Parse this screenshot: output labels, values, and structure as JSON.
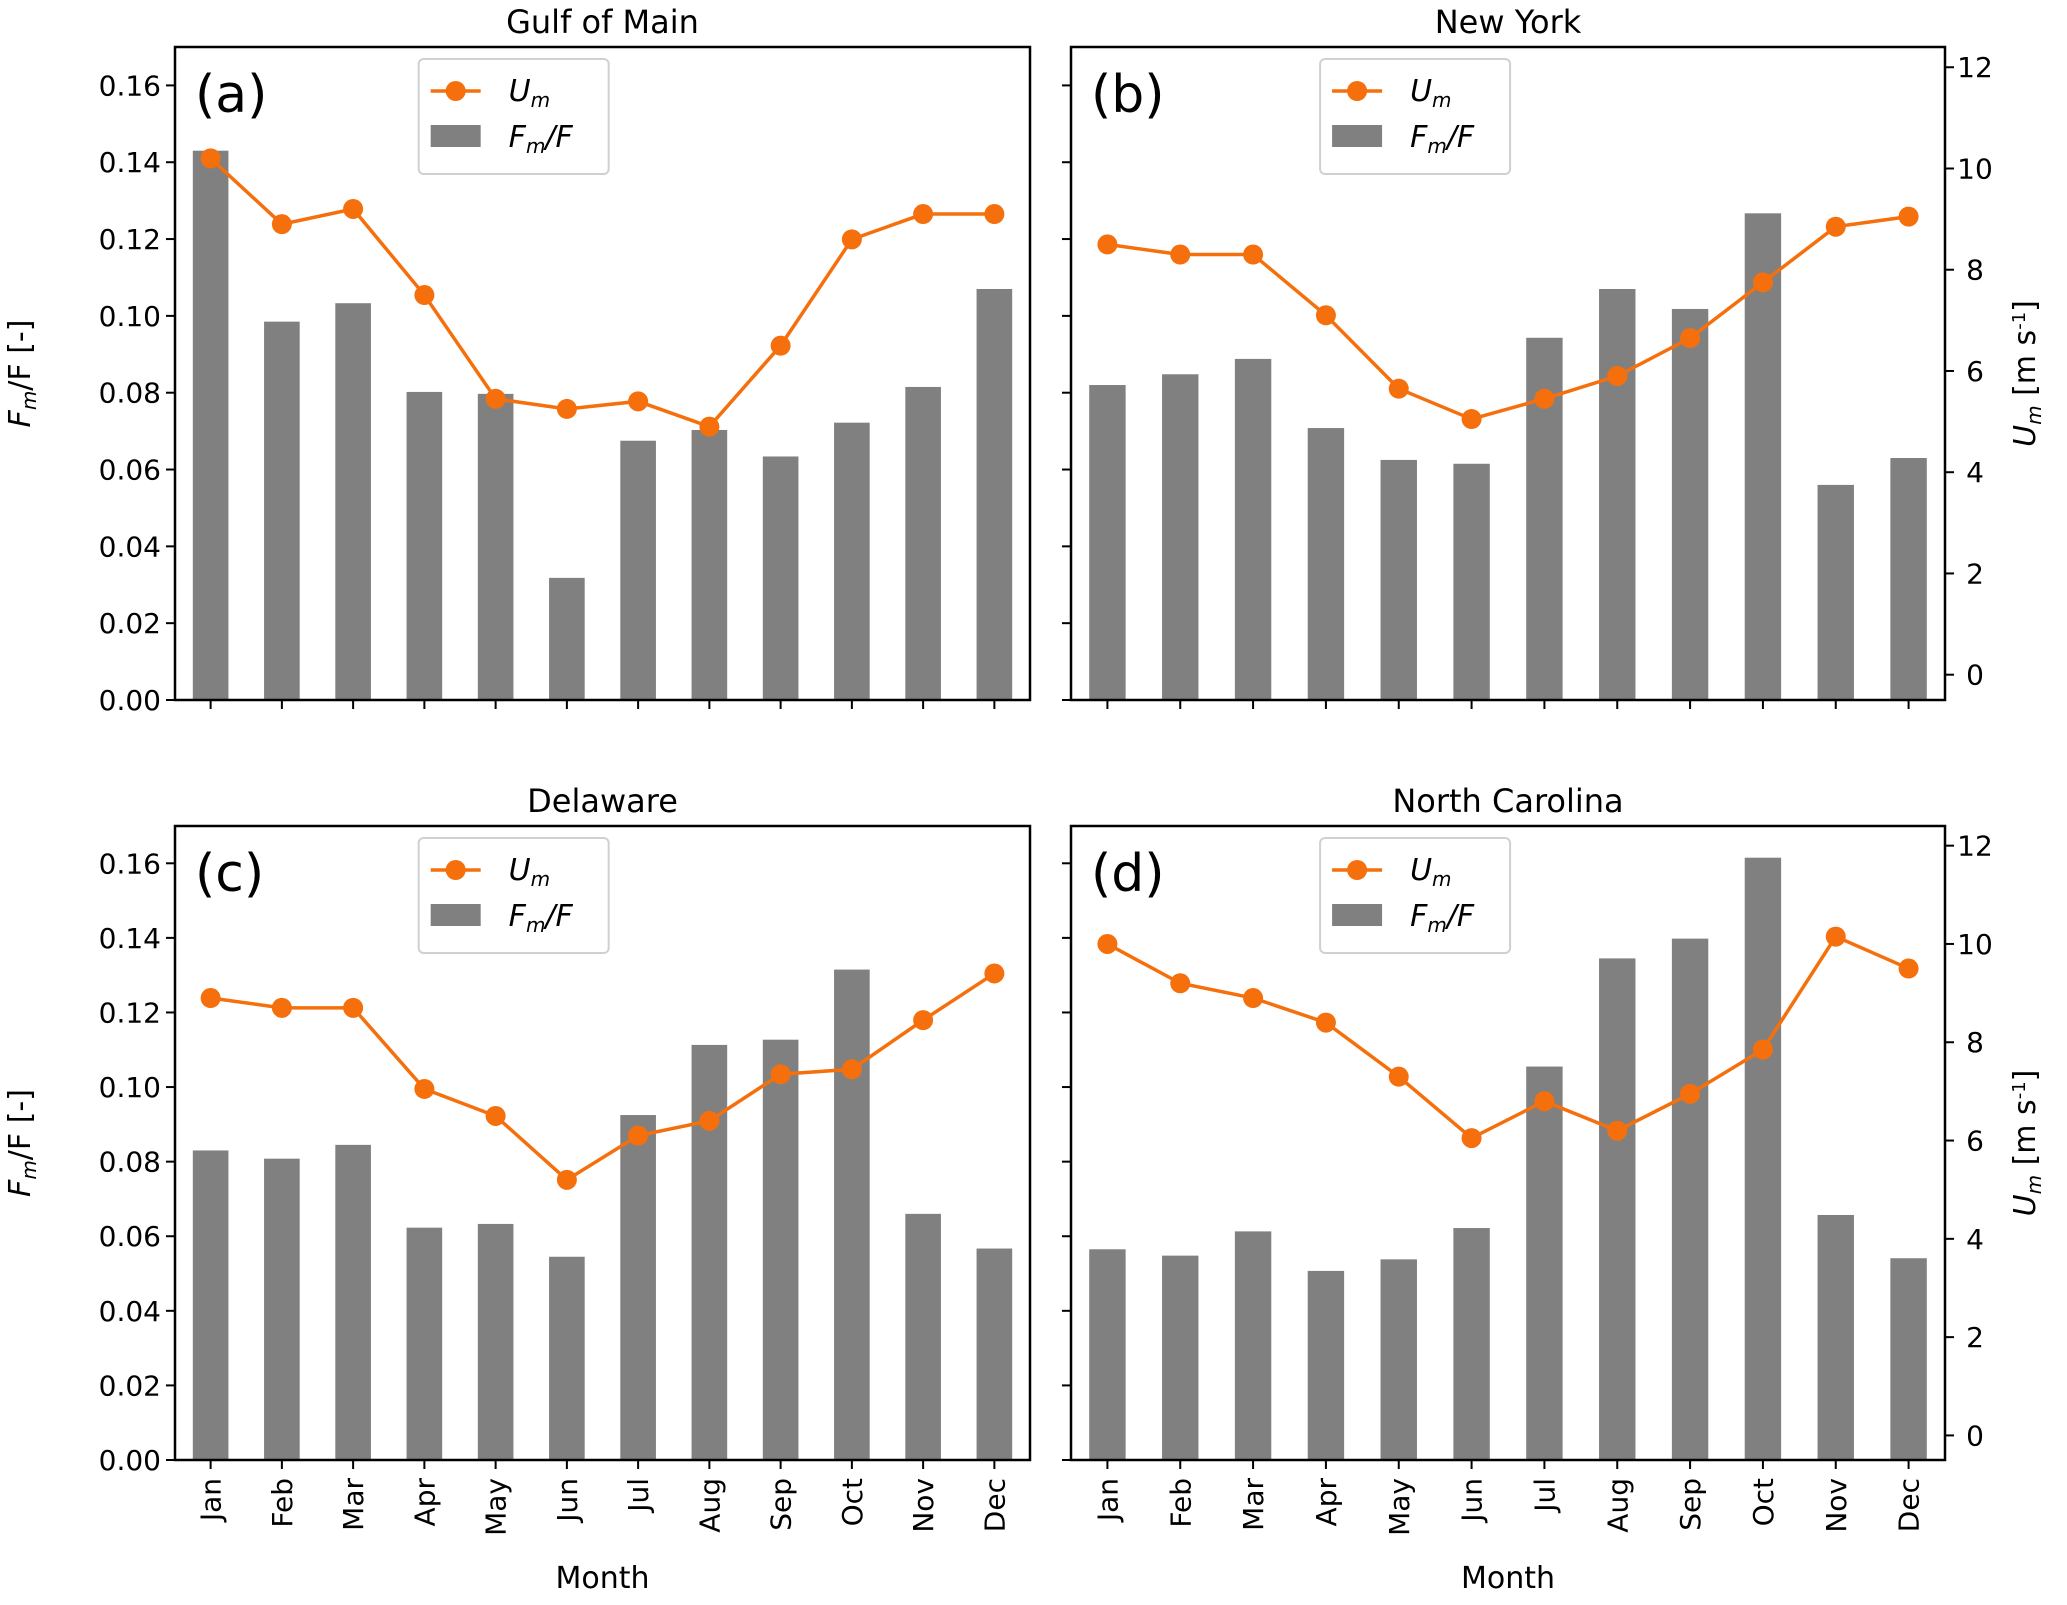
{
  "chart_data": [
    {
      "type": "bar",
      "panel": "(a)",
      "title": "Gulf of Main",
      "categories": [
        "Jan",
        "Feb",
        "Mar",
        "Apr",
        "May",
        "Jun",
        "Jul",
        "Aug",
        "Sep",
        "Oct",
        "Nov",
        "Dec"
      ],
      "series": [
        {
          "name": "F_m/F",
          "kind": "bar",
          "axis": "left",
          "color": "#808080",
          "values": [
            0.143,
            0.0985,
            0.1033,
            0.0802,
            0.0797,
            0.0318,
            0.0675,
            0.0703,
            0.0634,
            0.0722,
            0.0815,
            0.107
          ]
        },
        {
          "name": "U_m",
          "kind": "line",
          "axis": "right",
          "color": "#f5700c",
          "values": [
            10.2,
            8.9,
            9.2,
            7.5,
            5.45,
            5.25,
            5.4,
            4.9,
            6.5,
            8.6,
            9.1,
            9.1
          ]
        }
      ],
      "xlabel": "",
      "ylabel": "F_m/F [-]",
      "y2label": "",
      "ylim": [
        0,
        0.17
      ],
      "y2lim": [
        -0.5,
        12.4
      ],
      "yticks": [
        "0.00",
        "0.02",
        "0.04",
        "0.06",
        "0.08",
        "0.10",
        "0.12",
        "0.14",
        "0.16"
      ],
      "y2ticks": [],
      "show_xticklabels": false,
      "legend": "top-center",
      "grid": false
    },
    {
      "type": "bar",
      "panel": "(b)",
      "title": "New York",
      "categories": [
        "Jan",
        "Feb",
        "Mar",
        "Apr",
        "May",
        "Jun",
        "Jul",
        "Aug",
        "Sep",
        "Oct",
        "Nov",
        "Dec"
      ],
      "series": [
        {
          "name": "F_m/F",
          "kind": "bar",
          "axis": "left",
          "color": "#808080",
          "values": [
            0.082,
            0.0848,
            0.0888,
            0.0708,
            0.0625,
            0.0615,
            0.0943,
            0.107,
            0.1018,
            0.1267,
            0.056,
            0.063
          ]
        },
        {
          "name": "U_m",
          "kind": "line",
          "axis": "right",
          "color": "#f5700c",
          "values": [
            8.5,
            8.3,
            8.3,
            7.1,
            5.65,
            5.05,
            5.45,
            5.9,
            6.65,
            7.75,
            8.85,
            9.05
          ]
        }
      ],
      "xlabel": "",
      "ylabel": "",
      "y2label": "U_m [m s^-1]",
      "ylim": [
        0,
        0.17
      ],
      "y2lim": [
        -0.5,
        12.4
      ],
      "yticks": [],
      "y2ticks": [
        "0",
        "2",
        "4",
        "6",
        "8",
        "10",
        "12"
      ],
      "show_xticklabels": false,
      "legend": "top-center",
      "grid": false
    },
    {
      "type": "bar",
      "panel": "(c)",
      "title": "Delaware",
      "categories": [
        "Jan",
        "Feb",
        "Mar",
        "Apr",
        "May",
        "Jun",
        "Jul",
        "Aug",
        "Sep",
        "Oct",
        "Nov",
        "Dec"
      ],
      "series": [
        {
          "name": "F_m/F",
          "kind": "bar",
          "axis": "left",
          "color": "#808080",
          "values": [
            0.083,
            0.0808,
            0.0845,
            0.0623,
            0.0633,
            0.0545,
            0.0925,
            0.1113,
            0.1127,
            0.1315,
            0.066,
            0.0567
          ]
        },
        {
          "name": "U_m",
          "kind": "line",
          "axis": "right",
          "color": "#f5700c",
          "values": [
            8.9,
            8.7,
            8.7,
            7.05,
            6.5,
            5.2,
            6.1,
            6.4,
            7.35,
            7.45,
            8.45,
            9.4
          ]
        }
      ],
      "xlabel": "Month",
      "ylabel": "F_m/F [-]",
      "y2label": "",
      "ylim": [
        0,
        0.17
      ],
      "y2lim": [
        -0.5,
        12.4
      ],
      "yticks": [
        "0.00",
        "0.02",
        "0.04",
        "0.06",
        "0.08",
        "0.10",
        "0.12",
        "0.14",
        "0.16"
      ],
      "y2ticks": [],
      "show_xticklabels": true,
      "legend": "top-center",
      "grid": false
    },
    {
      "type": "bar",
      "panel": "(d)",
      "title": "North Carolina",
      "categories": [
        "Jan",
        "Feb",
        "Mar",
        "Apr",
        "May",
        "Jun",
        "Jul",
        "Aug",
        "Sep",
        "Oct",
        "Nov",
        "Dec"
      ],
      "series": [
        {
          "name": "F_m/F",
          "kind": "bar",
          "axis": "left",
          "color": "#808080",
          "values": [
            0.0565,
            0.0548,
            0.0613,
            0.0507,
            0.0538,
            0.0622,
            0.1055,
            0.1345,
            0.1398,
            0.1615,
            0.0657,
            0.0541
          ]
        },
        {
          "name": "U_m",
          "kind": "line",
          "axis": "right",
          "color": "#f5700c",
          "values": [
            10.0,
            9.2,
            8.9,
            8.4,
            7.3,
            6.05,
            6.8,
            6.2,
            6.95,
            7.85,
            10.15,
            9.5
          ]
        }
      ],
      "xlabel": "Month",
      "ylabel": "",
      "y2label": "U_m [m s^-1]",
      "ylim": [
        0,
        0.17
      ],
      "y2lim": [
        -0.5,
        12.4
      ],
      "yticks": [],
      "y2ticks": [
        "0",
        "2",
        "4",
        "6",
        "8",
        "10",
        "12"
      ],
      "show_xticklabels": true,
      "legend": "top-center",
      "grid": false
    }
  ],
  "legend": {
    "line_label_base": "U",
    "line_label_sub": "m",
    "bar_label_base": "F",
    "bar_label_sub": "m",
    "bar_label_tail": "/F"
  },
  "labels": {
    "left_axis_base": "F",
    "left_axis_sub": "m",
    "left_axis_tail": "/F [-]",
    "right_axis_base": "U",
    "right_axis_sub": "m",
    "right_axis_tail": " [m s",
    "right_axis_sup": "-1",
    "right_axis_close": "]"
  }
}
